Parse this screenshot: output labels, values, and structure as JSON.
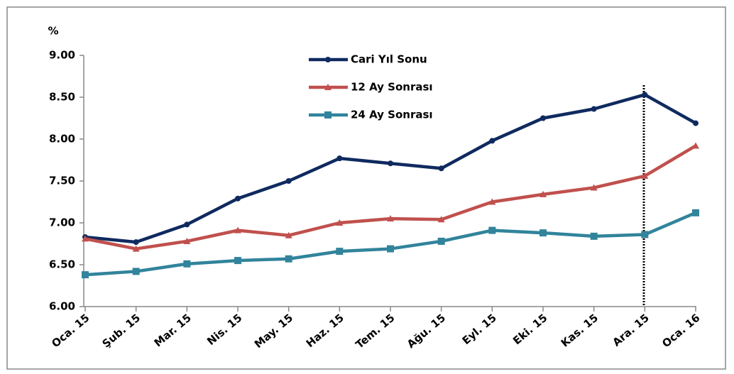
{
  "chart_data": {
    "type": "line",
    "y_label": "%",
    "categories": [
      "Oca. 15",
      "Şub. 15",
      "Mar. 15",
      "Nis. 15",
      "May. 15",
      "Haz. 15",
      "Tem. 15",
      "Ağu. 15",
      "Eyl. 15",
      "Eki. 15",
      "Kas. 15",
      "Ara. 15",
      "Oca. 16"
    ],
    "series": [
      {
        "name": "Cari Yıl Sonu",
        "color": "#0f2a5f",
        "marker": "circle",
        "values": [
          6.83,
          6.77,
          6.98,
          7.29,
          7.5,
          7.77,
          7.71,
          7.65,
          7.98,
          8.25,
          8.36,
          8.53,
          8.19
        ]
      },
      {
        "name": "12 Ay Sonrası",
        "color": "#c0504d",
        "marker": "triangle",
        "values": [
          6.81,
          6.69,
          6.78,
          6.91,
          6.85,
          7.0,
          7.05,
          7.04,
          7.25,
          7.34,
          7.42,
          7.56,
          7.92
        ]
      },
      {
        "name": "24 Ay Sonrası",
        "color": "#31849b",
        "marker": "square",
        "values": [
          6.38,
          6.42,
          6.51,
          6.55,
          6.57,
          6.66,
          6.69,
          6.78,
          6.91,
          6.88,
          6.84,
          6.86,
          7.12
        ]
      }
    ],
    "ylim": [
      6,
      9
    ],
    "yticks": [
      {
        "value": 6,
        "label": "6.00"
      },
      {
        "value": 6.5,
        "label": "6.50"
      },
      {
        "value": 7,
        "label": "7.00"
      },
      {
        "value": 7.5,
        "label": "7.50"
      },
      {
        "value": 8,
        "label": "8.00"
      },
      {
        "value": 8.5,
        "label": "8.50"
      },
      {
        "value": 9,
        "label": "9.00"
      }
    ],
    "grid": false
  }
}
